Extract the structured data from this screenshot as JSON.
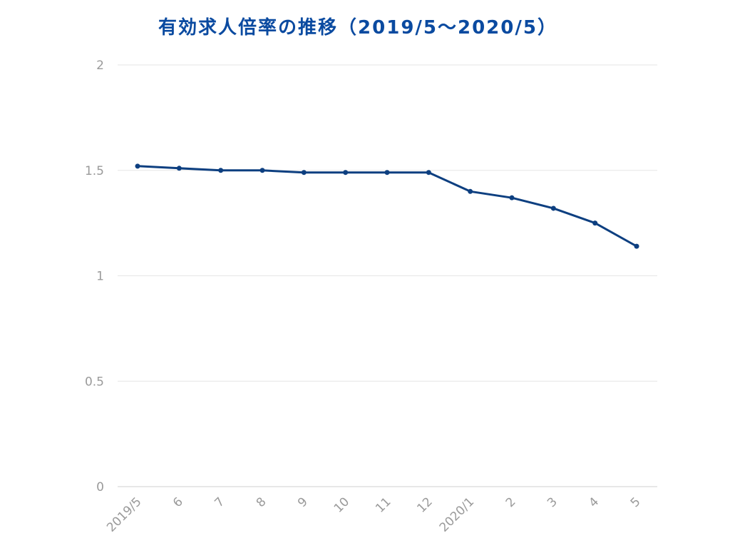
{
  "chart_data": {
    "type": "line",
    "title": "有効求人倍率の推移（2019/5〜2020/5）",
    "xlabel": "",
    "ylabel": "",
    "categories": [
      "2019/5",
      "6",
      "7",
      "8",
      "9",
      "10",
      "11",
      "12",
      "2020/1",
      "2",
      "3",
      "4",
      "5"
    ],
    "series": [
      {
        "values": [
          1.52,
          1.51,
          1.5,
          1.5,
          1.49,
          1.49,
          1.49,
          1.49,
          1.4,
          1.37,
          1.32,
          1.25,
          1.14
        ]
      }
    ],
    "yticks": [
      "0",
      "0.5",
      "1",
      "1.5",
      "2"
    ],
    "ylim": [
      0,
      2
    ],
    "grid": true,
    "colors": {
      "line": "#0d3f80",
      "title": "#0a4aa0",
      "grid": "#e6e6e6",
      "axis": "#cfcfcf"
    }
  }
}
